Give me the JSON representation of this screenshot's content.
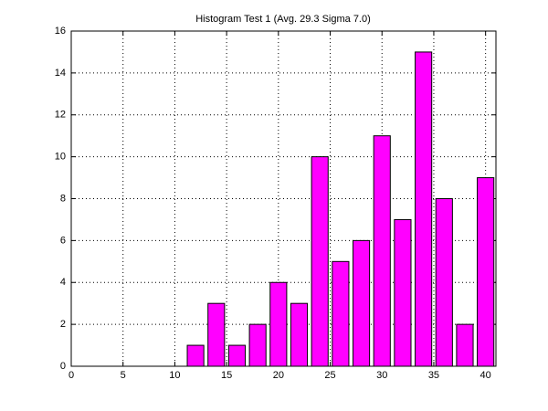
{
  "chart_data": {
    "type": "histogram",
    "title": "Histogram Test 1 (Avg. 29.3 Sigma 7.0)",
    "bins": [
      11,
      13,
      15,
      17,
      19,
      21,
      23,
      25,
      27,
      29,
      31,
      33,
      35,
      37,
      39,
      41
    ],
    "values": [
      1,
      3,
      1,
      2,
      4,
      3,
      10,
      5,
      6,
      11,
      7,
      15,
      8,
      2,
      9
    ],
    "color": "#ff00ff",
    "xlim": [
      0,
      41
    ],
    "xticks": [
      0,
      5,
      10,
      15,
      20,
      25,
      30,
      35,
      40
    ],
    "ylim": [
      0,
      16
    ],
    "yticks": [
      0,
      2,
      4,
      6,
      8,
      10,
      12,
      14,
      16
    ],
    "grid": true
  }
}
